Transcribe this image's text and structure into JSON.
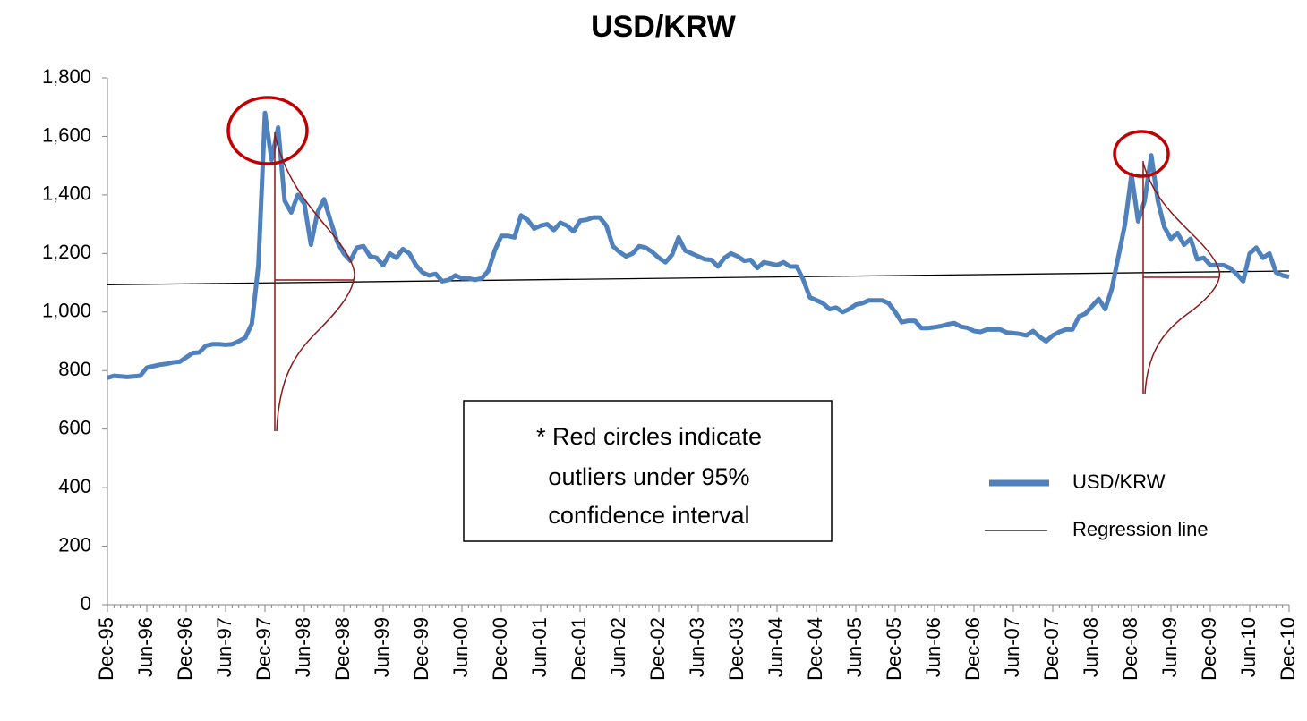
{
  "chart_data": {
    "type": "line",
    "title": "USD/KRW",
    "categories": [
      "Dec-95",
      null,
      null,
      null,
      null,
      null,
      "Jun-96",
      null,
      null,
      null,
      null,
      null,
      "Dec-96",
      null,
      null,
      null,
      null,
      null,
      "Jun-97",
      null,
      null,
      null,
      null,
      null,
      "Dec-97",
      null,
      null,
      null,
      null,
      null,
      "Jun-98",
      null,
      null,
      null,
      null,
      null,
      "Dec-98",
      null,
      null,
      null,
      null,
      null,
      "Jun-99",
      null,
      null,
      null,
      null,
      null,
      "Dec-99",
      null,
      null,
      null,
      null,
      null,
      "Jun-00",
      null,
      null,
      null,
      null,
      null,
      "Dec-00",
      null,
      null,
      null,
      null,
      null,
      "Jun-01",
      null,
      null,
      null,
      null,
      null,
      "Dec-01",
      null,
      null,
      null,
      null,
      null,
      "Jun-02",
      null,
      null,
      null,
      null,
      null,
      "Dec-02",
      null,
      null,
      null,
      null,
      null,
      "Jun-03",
      null,
      null,
      null,
      null,
      null,
      "Dec-03",
      null,
      null,
      null,
      null,
      null,
      "Jun-04",
      null,
      null,
      null,
      null,
      null,
      "Dec-04",
      null,
      null,
      null,
      null,
      null,
      "Jun-05",
      null,
      null,
      null,
      null,
      null,
      "Dec-05",
      null,
      null,
      null,
      null,
      null,
      "Jun-06",
      null,
      null,
      null,
      null,
      null,
      "Dec-06",
      null,
      null,
      null,
      null,
      null,
      "Jun-07",
      null,
      null,
      null,
      null,
      null,
      "Dec-07",
      null,
      null,
      null,
      null,
      null,
      "Jun-08",
      null,
      null,
      null,
      null,
      null,
      "Dec-08",
      null,
      null,
      null,
      null,
      null,
      "Jun-09",
      null,
      null,
      null,
      null,
      null,
      "Dec-09",
      null,
      null,
      null,
      null,
      null,
      "Jun-10",
      null,
      null,
      null,
      null,
      null,
      "Dec-10"
    ],
    "series": [
      {
        "name": "USD/KRW",
        "color": "#4f81bd",
        "values": [
          775,
          782,
          780,
          778,
          780,
          782,
          810,
          815,
          820,
          823,
          828,
          830,
          845,
          860,
          862,
          885,
          890,
          890,
          888,
          890,
          900,
          912,
          960,
          1160,
          1680,
          1520,
          1630,
          1380,
          1340,
          1400,
          1370,
          1230,
          1340,
          1385,
          1310,
          1240,
          1200,
          1175,
          1220,
          1225,
          1190,
          1185,
          1160,
          1200,
          1185,
          1215,
          1200,
          1160,
          1135,
          1125,
          1130,
          1105,
          1110,
          1125,
          1115,
          1115,
          1110,
          1115,
          1140,
          1210,
          1260,
          1260,
          1255,
          1330,
          1315,
          1285,
          1295,
          1300,
          1280,
          1305,
          1295,
          1275,
          1312,
          1315,
          1323,
          1323,
          1295,
          1225,
          1205,
          1190,
          1200,
          1225,
          1220,
          1205,
          1185,
          1170,
          1195,
          1255,
          1210,
          1200,
          1190,
          1180,
          1178,
          1155,
          1185,
          1200,
          1190,
          1175,
          1178,
          1150,
          1170,
          1165,
          1160,
          1170,
          1155,
          1155,
          1110,
          1050,
          1040,
          1030,
          1010,
          1015,
          1000,
          1010,
          1025,
          1030,
          1040,
          1040,
          1040,
          1030,
          1000,
          965,
          970,
          970,
          945,
          945,
          948,
          952,
          958,
          962,
          950,
          946,
          935,
          932,
          940,
          940,
          940,
          930,
          928,
          925,
          920,
          935,
          915,
          900,
          920,
          932,
          940,
          940,
          985,
          995,
          1020,
          1045,
          1010,
          1080,
          1190,
          1300,
          1470,
          1310,
          1380,
          1535,
          1380,
          1290,
          1250,
          1270,
          1230,
          1250,
          1180,
          1185,
          1160,
          1160,
          1160,
          1150,
          1130,
          1105,
          1200,
          1220,
          1185,
          1200,
          1135,
          1125,
          1120
        ]
      }
    ],
    "regression_line": {
      "name": "Regression line",
      "color": "#000000",
      "values": [
        1093,
        1140
      ]
    },
    "ylim": [
      0,
      1800
    ],
    "yticks": [
      0,
      200,
      400,
      600,
      800,
      {
        "value": 1000,
        "label": "1,000"
      },
      {
        "value": 1200,
        "label": "1,200"
      },
      {
        "value": 1400,
        "label": "1,400"
      },
      {
        "value": 1600,
        "label": "1,600"
      },
      {
        "value": 1800,
        "label": "1,800"
      }
    ],
    "grid": false,
    "legend": "right",
    "annotation": [
      "* Red circles indicate",
      "outliers under 95%",
      "confidence interval"
    ]
  }
}
